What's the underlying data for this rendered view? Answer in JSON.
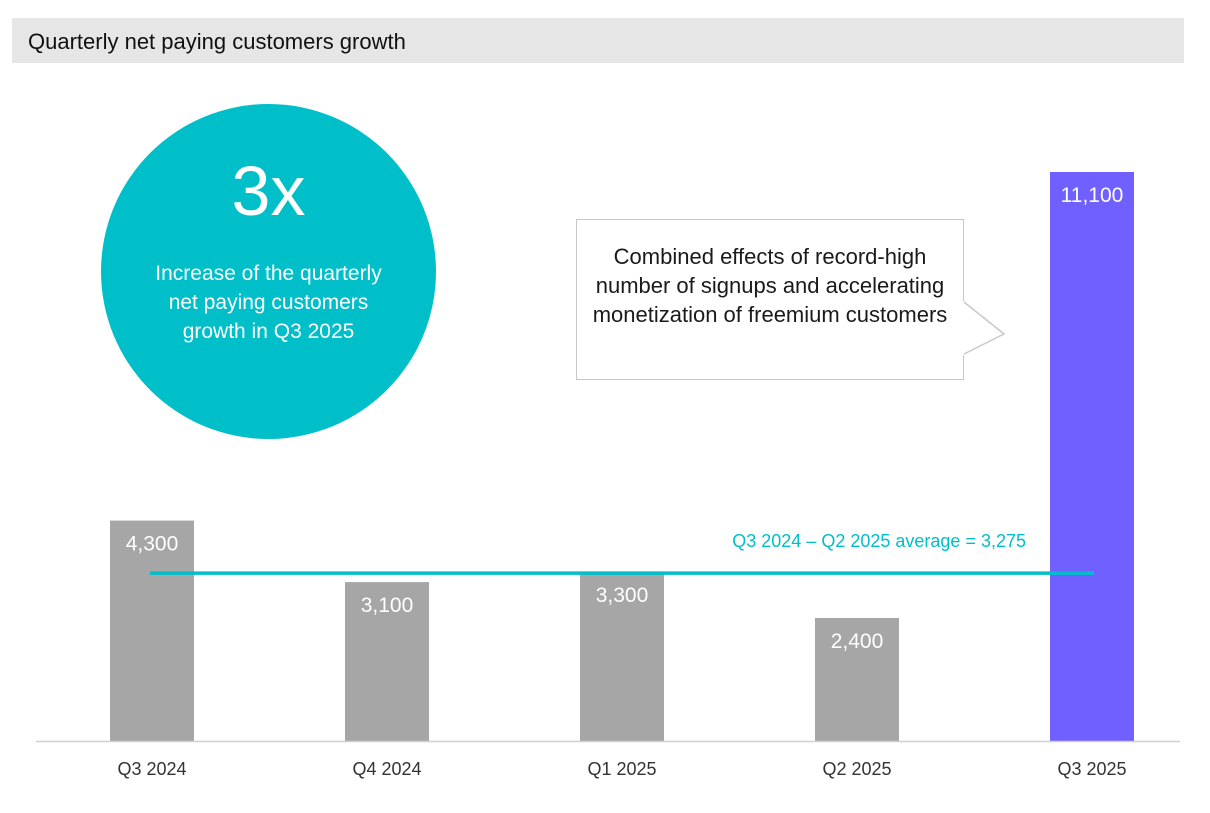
{
  "header": {
    "title": "Quarterly net paying customers growth"
  },
  "highlight": {
    "big_value": "3x",
    "description": "Increase of the quarterly net paying customers growth in Q3 2025",
    "color": "#00bfc8"
  },
  "callout": {
    "text": "Combined effects of record-high number of signups and accelerating monetization of freemium customers"
  },
  "chart_data": {
    "type": "bar",
    "title": "Quarterly net paying customers growth",
    "categories": [
      "Q3 2024",
      "Q4 2024",
      "Q1 2025",
      "Q2 2025",
      "Q3 2025"
    ],
    "values": [
      4300,
      3100,
      3300,
      2400,
      11100
    ],
    "value_labels": [
      "4,300",
      "3,100",
      "3,300",
      "2,400",
      "11,100"
    ],
    "bar_colors": [
      "#a6a6a6",
      "#a6a6a6",
      "#a6a6a6",
      "#a6a6a6",
      "#7060ff"
    ],
    "ylim": [
      0,
      11100
    ],
    "xlabel": "",
    "ylabel": "",
    "grid": false,
    "average_line": {
      "value": 3275,
      "label": "Q3 2024 – Q2 2025 average = 3,275",
      "color": "#00bfc8"
    }
  }
}
